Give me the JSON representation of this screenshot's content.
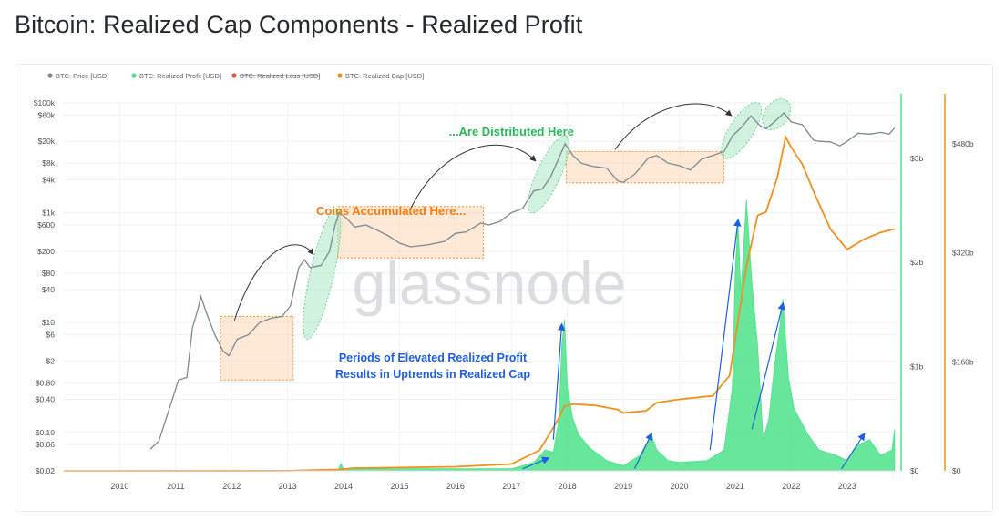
{
  "page": {
    "title": "Bitcoin: Realized Cap Components - Realized Profit"
  },
  "chart_data": {
    "type": "line",
    "title": "Bitcoin: Realized Cap Components - Realized Profit",
    "legend_position": "top-left",
    "legend": [
      {
        "label": "BTC: Price [USD]",
        "color": "#7d8891",
        "struck": false
      },
      {
        "label": "BTC: Realized Profit [USD]",
        "color": "#4ee28a",
        "struck": false
      },
      {
        "label": "BTC: Realized Loss [USD]",
        "color": "#e0544c",
        "struck": true
      },
      {
        "label": "BTC: Realized Cap [USD]",
        "color": "#f0901e",
        "struck": false
      }
    ],
    "x_axis": {
      "ticks": [
        "2010",
        "2011",
        "2012",
        "2013",
        "2014",
        "2015",
        "2016",
        "2017",
        "2018",
        "2019",
        "2020",
        "2021",
        "2022",
        "2023"
      ],
      "range": [
        2009.0,
        2023.9
      ]
    },
    "y_axis_left": {
      "scale": "log",
      "label": "",
      "ticks": [
        "$100k",
        "$60k",
        "$20k",
        "$8k",
        "$4k",
        "$1k",
        "$600",
        "$200",
        "$80",
        "$40",
        "$10",
        "$6",
        "$2",
        "$0.80",
        "$0.40",
        "$0.10",
        "$0.06",
        "$0.02"
      ]
    },
    "y_axis_right_profit": {
      "ticks": [
        "$3b",
        "$2b",
        "$1b",
        "$0"
      ],
      "range": [
        0,
        3.4
      ]
    },
    "y_axis_right_cap": {
      "ticks": [
        "$480b",
        "$320b",
        "$160b",
        "$0"
      ],
      "range": [
        0,
        520
      ]
    },
    "grid": true,
    "watermark": "glassnode",
    "series": [
      {
        "name": "BTC: Price [USD]",
        "color": "#7d8891",
        "x": [
          2010.55,
          2010.7,
          2010.9,
          2011.05,
          2011.2,
          2011.3,
          2011.4,
          2011.45,
          2011.55,
          2011.7,
          2011.85,
          2011.95,
          2012.1,
          2012.3,
          2012.5,
          2012.7,
          2012.9,
          2013.05,
          2013.2,
          2013.3,
          2013.4,
          2013.6,
          2013.75,
          2013.85,
          2013.92,
          2014.05,
          2014.2,
          2014.4,
          2014.6,
          2014.8,
          2015.0,
          2015.2,
          2015.5,
          2015.8,
          2016.0,
          2016.2,
          2016.45,
          2016.6,
          2016.8,
          2017.0,
          2017.2,
          2017.4,
          2017.55,
          2017.7,
          2017.85,
          2017.96,
          2018.1,
          2018.25,
          2018.45,
          2018.7,
          2018.9,
          2019.0,
          2019.2,
          2019.45,
          2019.6,
          2019.8,
          2020.0,
          2020.2,
          2020.4,
          2020.6,
          2020.8,
          2020.95,
          2021.1,
          2021.28,
          2021.45,
          2021.55,
          2021.7,
          2021.87,
          2022.0,
          2022.2,
          2022.4,
          2022.5,
          2022.7,
          2022.87,
          2023.0,
          2023.2,
          2023.4,
          2023.6,
          2023.75,
          2023.85
        ],
        "values": [
          0.05,
          0.07,
          0.3,
          0.9,
          1.0,
          8,
          18,
          30,
          15,
          6,
          3,
          2.5,
          5,
          6,
          10,
          12,
          13,
          20,
          100,
          140,
          100,
          110,
          200,
          600,
          1000,
          800,
          550,
          600,
          480,
          380,
          280,
          240,
          260,
          300,
          420,
          450,
          650,
          600,
          700,
          1000,
          1200,
          2500,
          2700,
          4500,
          10000,
          18000,
          11000,
          8000,
          7000,
          6500,
          3800,
          3600,
          5000,
          10000,
          11000,
          8000,
          7200,
          6000,
          9500,
          11000,
          13000,
          25000,
          35000,
          58000,
          38000,
          34000,
          45000,
          66000,
          45000,
          40000,
          21000,
          20000,
          19500,
          16500,
          20000,
          28000,
          27000,
          29000,
          27000,
          35000
        ]
      },
      {
        "name": "BTC: Realized Profit [USD]",
        "color": "#4ee28a",
        "x": [
          2009.0,
          2013.9,
          2013.95,
          2014.0,
          2017.0,
          2017.4,
          2017.6,
          2017.75,
          2017.85,
          2017.9,
          2017.95,
          2018.0,
          2018.1,
          2018.2,
          2018.4,
          2018.7,
          2019.0,
          2019.3,
          2019.45,
          2019.5,
          2019.6,
          2019.8,
          2020.0,
          2020.5,
          2020.8,
          2020.95,
          2021.0,
          2021.05,
          2021.1,
          2021.2,
          2021.3,
          2021.4,
          2021.5,
          2021.6,
          2021.7,
          2021.8,
          2021.85,
          2021.95,
          2022.05,
          2022.3,
          2022.5,
          2022.8,
          2023.0,
          2023.2,
          2023.4,
          2023.6,
          2023.8,
          2023.85
        ],
        "values": [
          0,
          0,
          0.07,
          0.02,
          0.02,
          0.08,
          0.2,
          0.18,
          0.5,
          1.2,
          1.45,
          0.8,
          0.5,
          0.35,
          0.22,
          0.1,
          0.05,
          0.15,
          0.3,
          0.35,
          0.2,
          0.1,
          0.08,
          0.1,
          0.2,
          0.8,
          1.9,
          2.4,
          1.7,
          2.6,
          1.8,
          1.2,
          0.3,
          0.5,
          1.0,
          1.4,
          1.65,
          0.9,
          0.6,
          0.35,
          0.2,
          0.15,
          0.1,
          0.25,
          0.3,
          0.15,
          0.2,
          0.4
        ]
      },
      {
        "name": "BTC: Realized Cap [USD]",
        "color": "#f0901e",
        "x": [
          2009.0,
          2013.0,
          2013.9,
          2014.2,
          2016.0,
          2017.0,
          2017.5,
          2017.8,
          2017.95,
          2018.1,
          2018.5,
          2018.9,
          2019.0,
          2019.4,
          2019.6,
          2020.0,
          2020.6,
          2020.9,
          2021.05,
          2021.2,
          2021.4,
          2021.55,
          2021.75,
          2021.9,
          2022.0,
          2022.2,
          2022.4,
          2022.7,
          2022.9,
          2023.0,
          2023.3,
          2023.6,
          2023.85
        ],
        "values": [
          0,
          0.2,
          2,
          4,
          6,
          10,
          30,
          70,
          95,
          98,
          96,
          90,
          85,
          88,
          100,
          105,
          110,
          140,
          220,
          300,
          375,
          380,
          430,
          490,
          475,
          450,
          410,
          355,
          335,
          325,
          340,
          350,
          355
        ]
      }
    ],
    "annotations": [
      {
        "text": "...Are Distributed Here",
        "color": "#29b95a"
      },
      {
        "text": "Coins Accumulated Here...",
        "color": "#f07c12"
      },
      {
        "text": "Periods of Elevated Realized Profit",
        "color": "#1f5fe0"
      },
      {
        "text": "Results in Uptrends in Realized Cap",
        "color": "#1f5fe0"
      }
    ]
  }
}
